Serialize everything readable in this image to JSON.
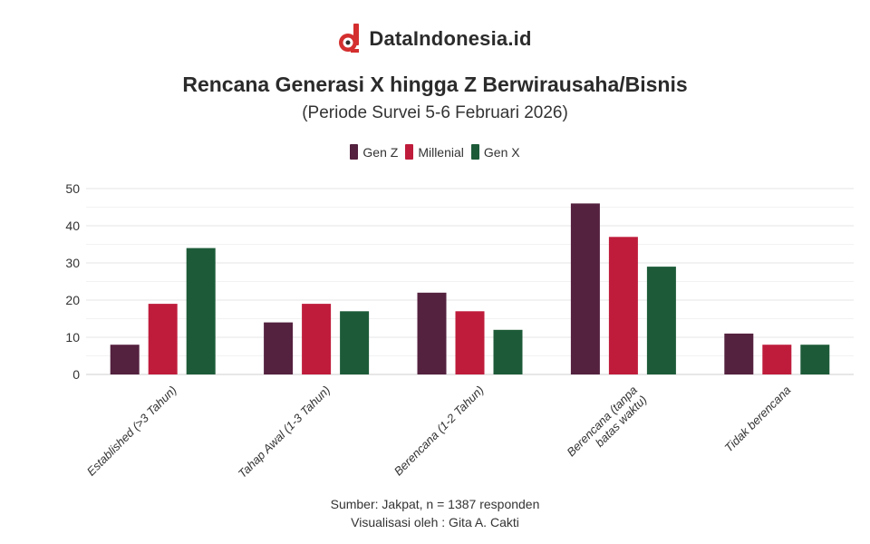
{
  "brand": {
    "name": "DataIndonesia.id",
    "logo_icon": "dataindonesia-logo-icon"
  },
  "header": {
    "title": "Rencana Generasi X hingga Z Berwirausaha/Bisnis",
    "subtitle": "(Periode Survei 5-6 Februari 2026)"
  },
  "footer": {
    "source": "Sumber: Jakpat, n = 1387 responden",
    "credit": "Visualisasi oleh : Gita A. Cakti"
  },
  "chart_data": {
    "type": "bar",
    "title": "Rencana Generasi X hingga Z Berwirausaha/Bisnis",
    "subtitle": "(Periode Survei 5-6 Februari 2026)",
    "categories": [
      "Established (>3 Tahun)",
      "Tahap Awal (1-3 Tahun)",
      "Berencana (1-2 Tahun)",
      "Berencana (tanpa batas waktu)",
      "Tidak berencana"
    ],
    "category_lines": [
      [
        "Established (>3 Tahun)"
      ],
      [
        "Tahap Awal (1-3 Tahun)"
      ],
      [
        "Berencana (1-2 Tahun)"
      ],
      [
        "Berencana (tanpa",
        "batas waktu)"
      ],
      [
        "Tidak berencana"
      ]
    ],
    "series": [
      {
        "name": "Gen Z",
        "color": "#54213f",
        "values": [
          8,
          14,
          22,
          46,
          11
        ]
      },
      {
        "name": "Millenial",
        "color": "#bf1c3b",
        "values": [
          19,
          19,
          17,
          37,
          8
        ]
      },
      {
        "name": "Gen X",
        "color": "#1d5b38",
        "values": [
          34,
          17,
          12,
          29,
          8
        ]
      }
    ],
    "ylim": [
      0,
      50
    ],
    "yticks": [
      0,
      10,
      20,
      30,
      40,
      50
    ],
    "xlabel": "",
    "ylabel": "",
    "grid": true,
    "legend_position": "top-center"
  }
}
